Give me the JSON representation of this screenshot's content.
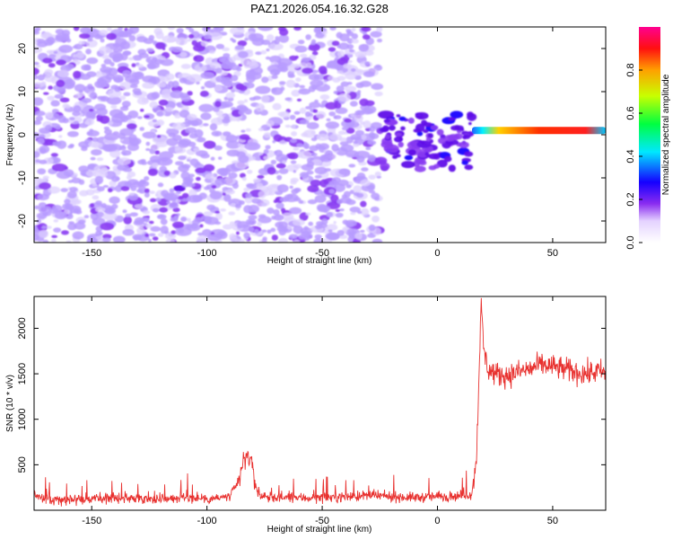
{
  "figure": {
    "title": "PAZ1.2026.054.16.32.G28"
  },
  "colors": {
    "snr_line": "#e8312f",
    "spectrogram_low": "#c8b6ff",
    "spectrogram_mid": "#7a1ff0",
    "spectrogram_high": "#ff2030",
    "axes": "#000000"
  },
  "chart_data": [
    {
      "type": "heatmap",
      "name_role": "spectrogram",
      "xlabel": "Height of straight line (km)",
      "ylabel": "Frequency (Hz)",
      "xlim": [
        -175,
        73
      ],
      "ylim": [
        -25,
        25
      ],
      "xticks": [
        -150,
        -100,
        -50,
        0,
        50
      ],
      "yticks": [
        -20,
        -10,
        0,
        10,
        20
      ],
      "colorbar": {
        "label": "Normalized spectral amplitude",
        "range": [
          0.0,
          1.0
        ],
        "ticks": [
          "0.0",
          "0.2",
          "0.4",
          "0.6",
          "0.8"
        ],
        "colormap": "hsv-like (white/purple low, blue, cyan, green, yellow, red, magenta high)"
      },
      "features": [
        {
          "description": "scattered low-amplitude noise",
          "x_range": [
            -175,
            -25
          ],
          "freq_range": [
            -25,
            25
          ],
          "amplitude": 0.15
        },
        {
          "description": "noise cluster near zero frequency",
          "x_range": [
            -25,
            15
          ],
          "freq_range": [
            -8,
            5
          ],
          "amplitude": 0.3
        },
        {
          "description": "narrow strong tone",
          "x_range": [
            15,
            73
          ],
          "frequency": 1,
          "amplitude": 0.95
        }
      ]
    },
    {
      "type": "line",
      "name_role": "snr",
      "xlabel": "Height of straight line (km)",
      "ylabel": "SNR (10 * v/v)",
      "xlim": [
        -175,
        73
      ],
      "ylim": [
        0,
        2350
      ],
      "xticks": [
        -150,
        -100,
        -50,
        0,
        50
      ],
      "yticks": [
        500,
        1000,
        1500,
        2000
      ],
      "series": [
        {
          "x": [
            -175,
            -170,
            -160,
            -150,
            -140,
            -130,
            -120,
            -110,
            -100,
            -95,
            -90,
            -86,
            -84,
            -82,
            -80,
            -78,
            -76,
            -72,
            -68,
            -60,
            -50,
            -40,
            -30,
            -20,
            -10,
            0,
            10,
            15,
            17,
            18,
            19,
            20,
            21,
            22,
            25,
            30,
            35,
            40,
            45,
            50,
            55,
            60,
            65,
            70,
            73
          ],
          "y": [
            180,
            110,
            120,
            125,
            130,
            135,
            125,
            140,
            130,
            135,
            150,
            320,
            550,
            620,
            420,
            200,
            150,
            130,
            140,
            135,
            140,
            150,
            160,
            150,
            140,
            150,
            160,
            180,
            600,
            1500,
            2250,
            1800,
            1650,
            1550,
            1500,
            1480,
            1520,
            1550,
            1600,
            1580,
            1550,
            1520,
            1500,
            1530,
            1500
          ]
        }
      ]
    }
  ]
}
